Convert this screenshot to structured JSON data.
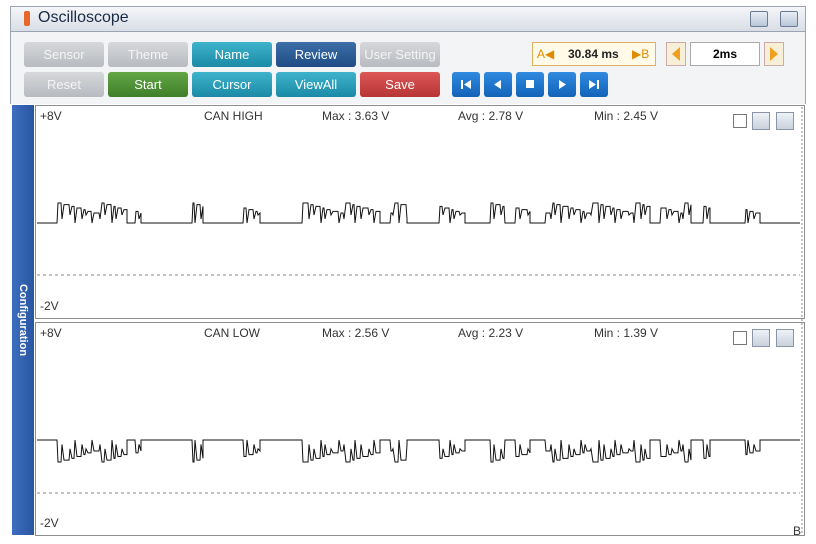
{
  "header": {
    "title": "Oscilloscope"
  },
  "toolbar": {
    "buttons": [
      "Sensor",
      "Theme",
      "Name",
      "Review",
      "User Setting",
      "Reset",
      "Start",
      "Cursor",
      "ViewAll",
      "Save"
    ],
    "cursor_a": "A◀",
    "cursor_time": "30.84 ms",
    "cursor_b": "▶B",
    "timebase": "2ms"
  },
  "sidebar": {
    "label": "Configuration"
  },
  "channels": [
    {
      "top": "+8V",
      "name": "CAN HIGH",
      "max": "Max : 3.63 V",
      "avg": "Avg : 2.78 V",
      "min": "Min : 2.45 V",
      "bottom": "-2V"
    },
    {
      "top": "+8V",
      "name": "CAN LOW",
      "max": "Max : 2.56 V",
      "avg": "Avg : 2.23 V",
      "min": "Min : 1.39 V",
      "bottom": "-2V"
    }
  ],
  "corner": "B"
}
